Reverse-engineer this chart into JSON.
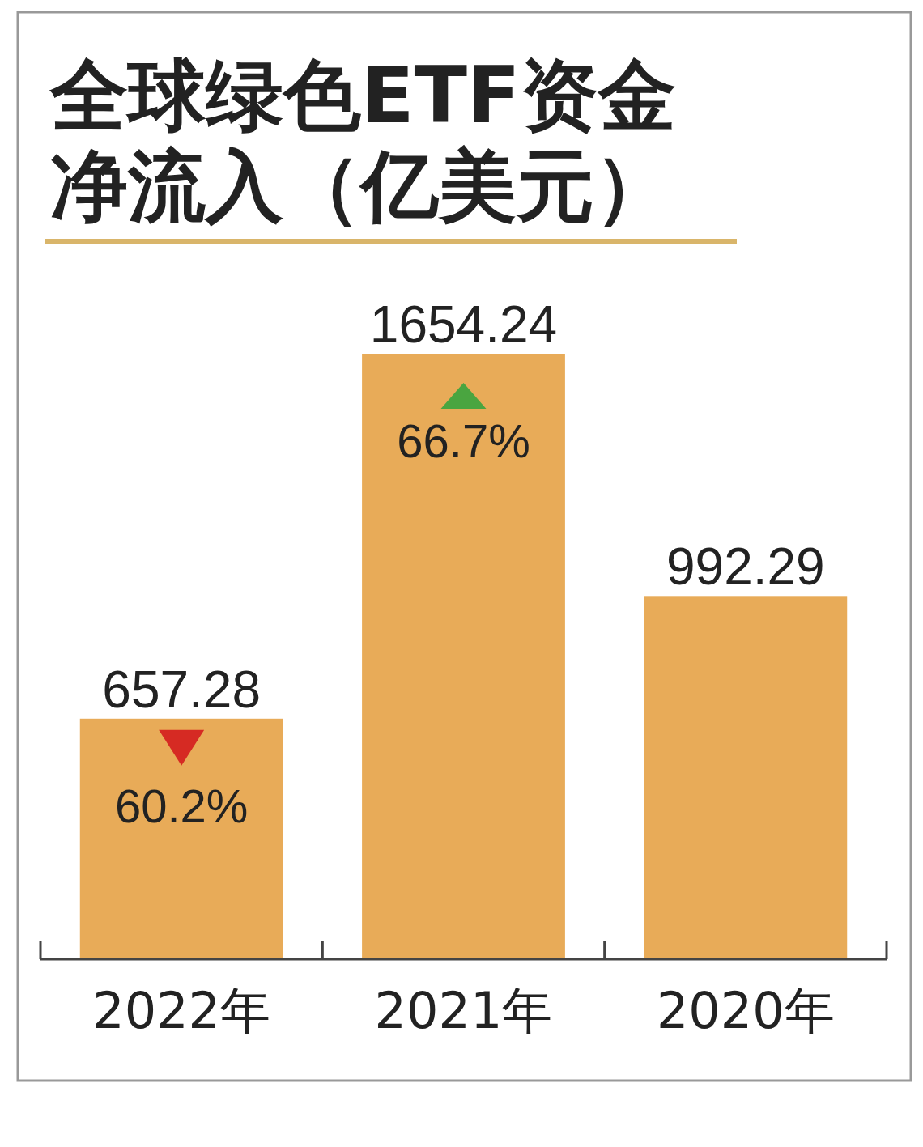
{
  "chart_data": {
    "type": "bar",
    "title": "全球绿色ETF资金净流入（亿美元）",
    "categories": [
      "2022年",
      "2021年",
      "2020年"
    ],
    "values": [
      657.28,
      1654.24,
      992.29
    ],
    "color": "#e8ab58",
    "data_labels": true,
    "annotations": [
      "60.2%",
      "66.7%"
    ]
  }
}
